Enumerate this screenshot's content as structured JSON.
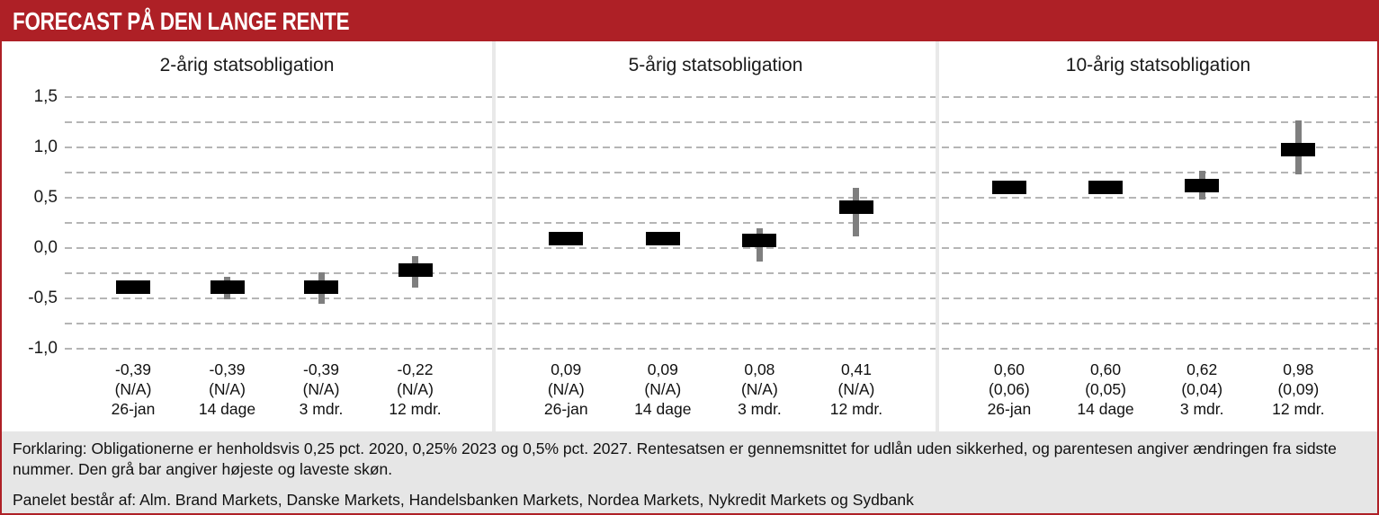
{
  "header": {
    "title": "FORECAST PÅ DEN LANGE RENTE"
  },
  "y_axis": {
    "tick_labels": [
      "1,5",
      "1,0",
      "0,5",
      "0,0",
      "-0,5",
      "-1,0"
    ],
    "min": -1.0,
    "max": 1.5,
    "major_step": 0.5,
    "minor_step": 0.25,
    "grid": "dashed"
  },
  "chart_data": [
    {
      "type": "bar",
      "style": "floating black bar = average forecast; gray vertical whisker = highest/lowest estimate",
      "title": "2-årig statsobligation",
      "categories": [
        "26-jan",
        "14 dage",
        "3 mdr.",
        "12 mdr."
      ],
      "values": [
        -0.39,
        -0.39,
        -0.39,
        -0.22
      ],
      "value_labels": [
        "-0,39",
        "-0,39",
        "-0,39",
        "-0,22"
      ],
      "change_labels": [
        "(N/A)",
        "(N/A)",
        "(N/A)",
        "(N/A)"
      ],
      "range_low": [
        null,
        -0.51,
        -0.55,
        -0.39
      ],
      "range_high": [
        null,
        -0.29,
        -0.24,
        -0.08
      ],
      "ylim": [
        -1.0,
        1.5
      ],
      "legend": "none"
    },
    {
      "type": "bar",
      "style": "floating black bar = average forecast; gray vertical whisker = highest/lowest estimate",
      "title": "5-årig statsobligation",
      "categories": [
        "26-jan",
        "14 dage",
        "3 mdr.",
        "12 mdr."
      ],
      "values": [
        0.09,
        0.09,
        0.08,
        0.41
      ],
      "value_labels": [
        "0,09",
        "0,09",
        "0,08",
        "0,41"
      ],
      "change_labels": [
        "(N/A)",
        "(N/A)",
        "(N/A)",
        "(N/A)"
      ],
      "range_low": [
        null,
        null,
        -0.13,
        0.12
      ],
      "range_high": [
        null,
        null,
        0.2,
        0.6
      ],
      "ylim": [
        -1.0,
        1.5
      ],
      "legend": "none"
    },
    {
      "type": "bar",
      "style": "floating black bar = average forecast; gray vertical whisker = highest/lowest estimate",
      "title": "10-årig statsobligation",
      "categories": [
        "26-jan",
        "14 dage",
        "3 mdr.",
        "12 mdr."
      ],
      "values": [
        0.6,
        0.6,
        0.62,
        0.98
      ],
      "value_labels": [
        "0,60",
        "0,60",
        "0,62",
        "0,98"
      ],
      "change_labels": [
        "(0,06)",
        "(0,05)",
        "(0,04)",
        "(0,09)"
      ],
      "range_low": [
        null,
        null,
        0.48,
        0.73
      ],
      "range_high": [
        null,
        null,
        0.77,
        1.27
      ],
      "ylim": [
        -1.0,
        1.5
      ],
      "legend": "none"
    }
  ],
  "footer": {
    "explanation": "Forklaring: Obligationerne er henholdsvis 0,25 pct. 2020, 0,25% 2023 og 0,5% pct. 2027. Rentesatsen er gennemsnittet for udlån uden sikkerhed, og parentesen angiver ændringen fra sidste nummer. Den grå bar angiver højeste og laveste skøn.",
    "panel_note": "Panelet består af: Alm. Brand Markets, Danske Markets, Handelsbanken Markets, Nordea Markets, Nykredit Markets og Sydbank"
  },
  "colors": {
    "accent_red": "#ae2026",
    "bar": "#000000",
    "whisker": "#7f7f7f",
    "gridline": "#b5b5b5",
    "divider": "#e9e9e9",
    "footer_bg": "#e6e6e6"
  }
}
